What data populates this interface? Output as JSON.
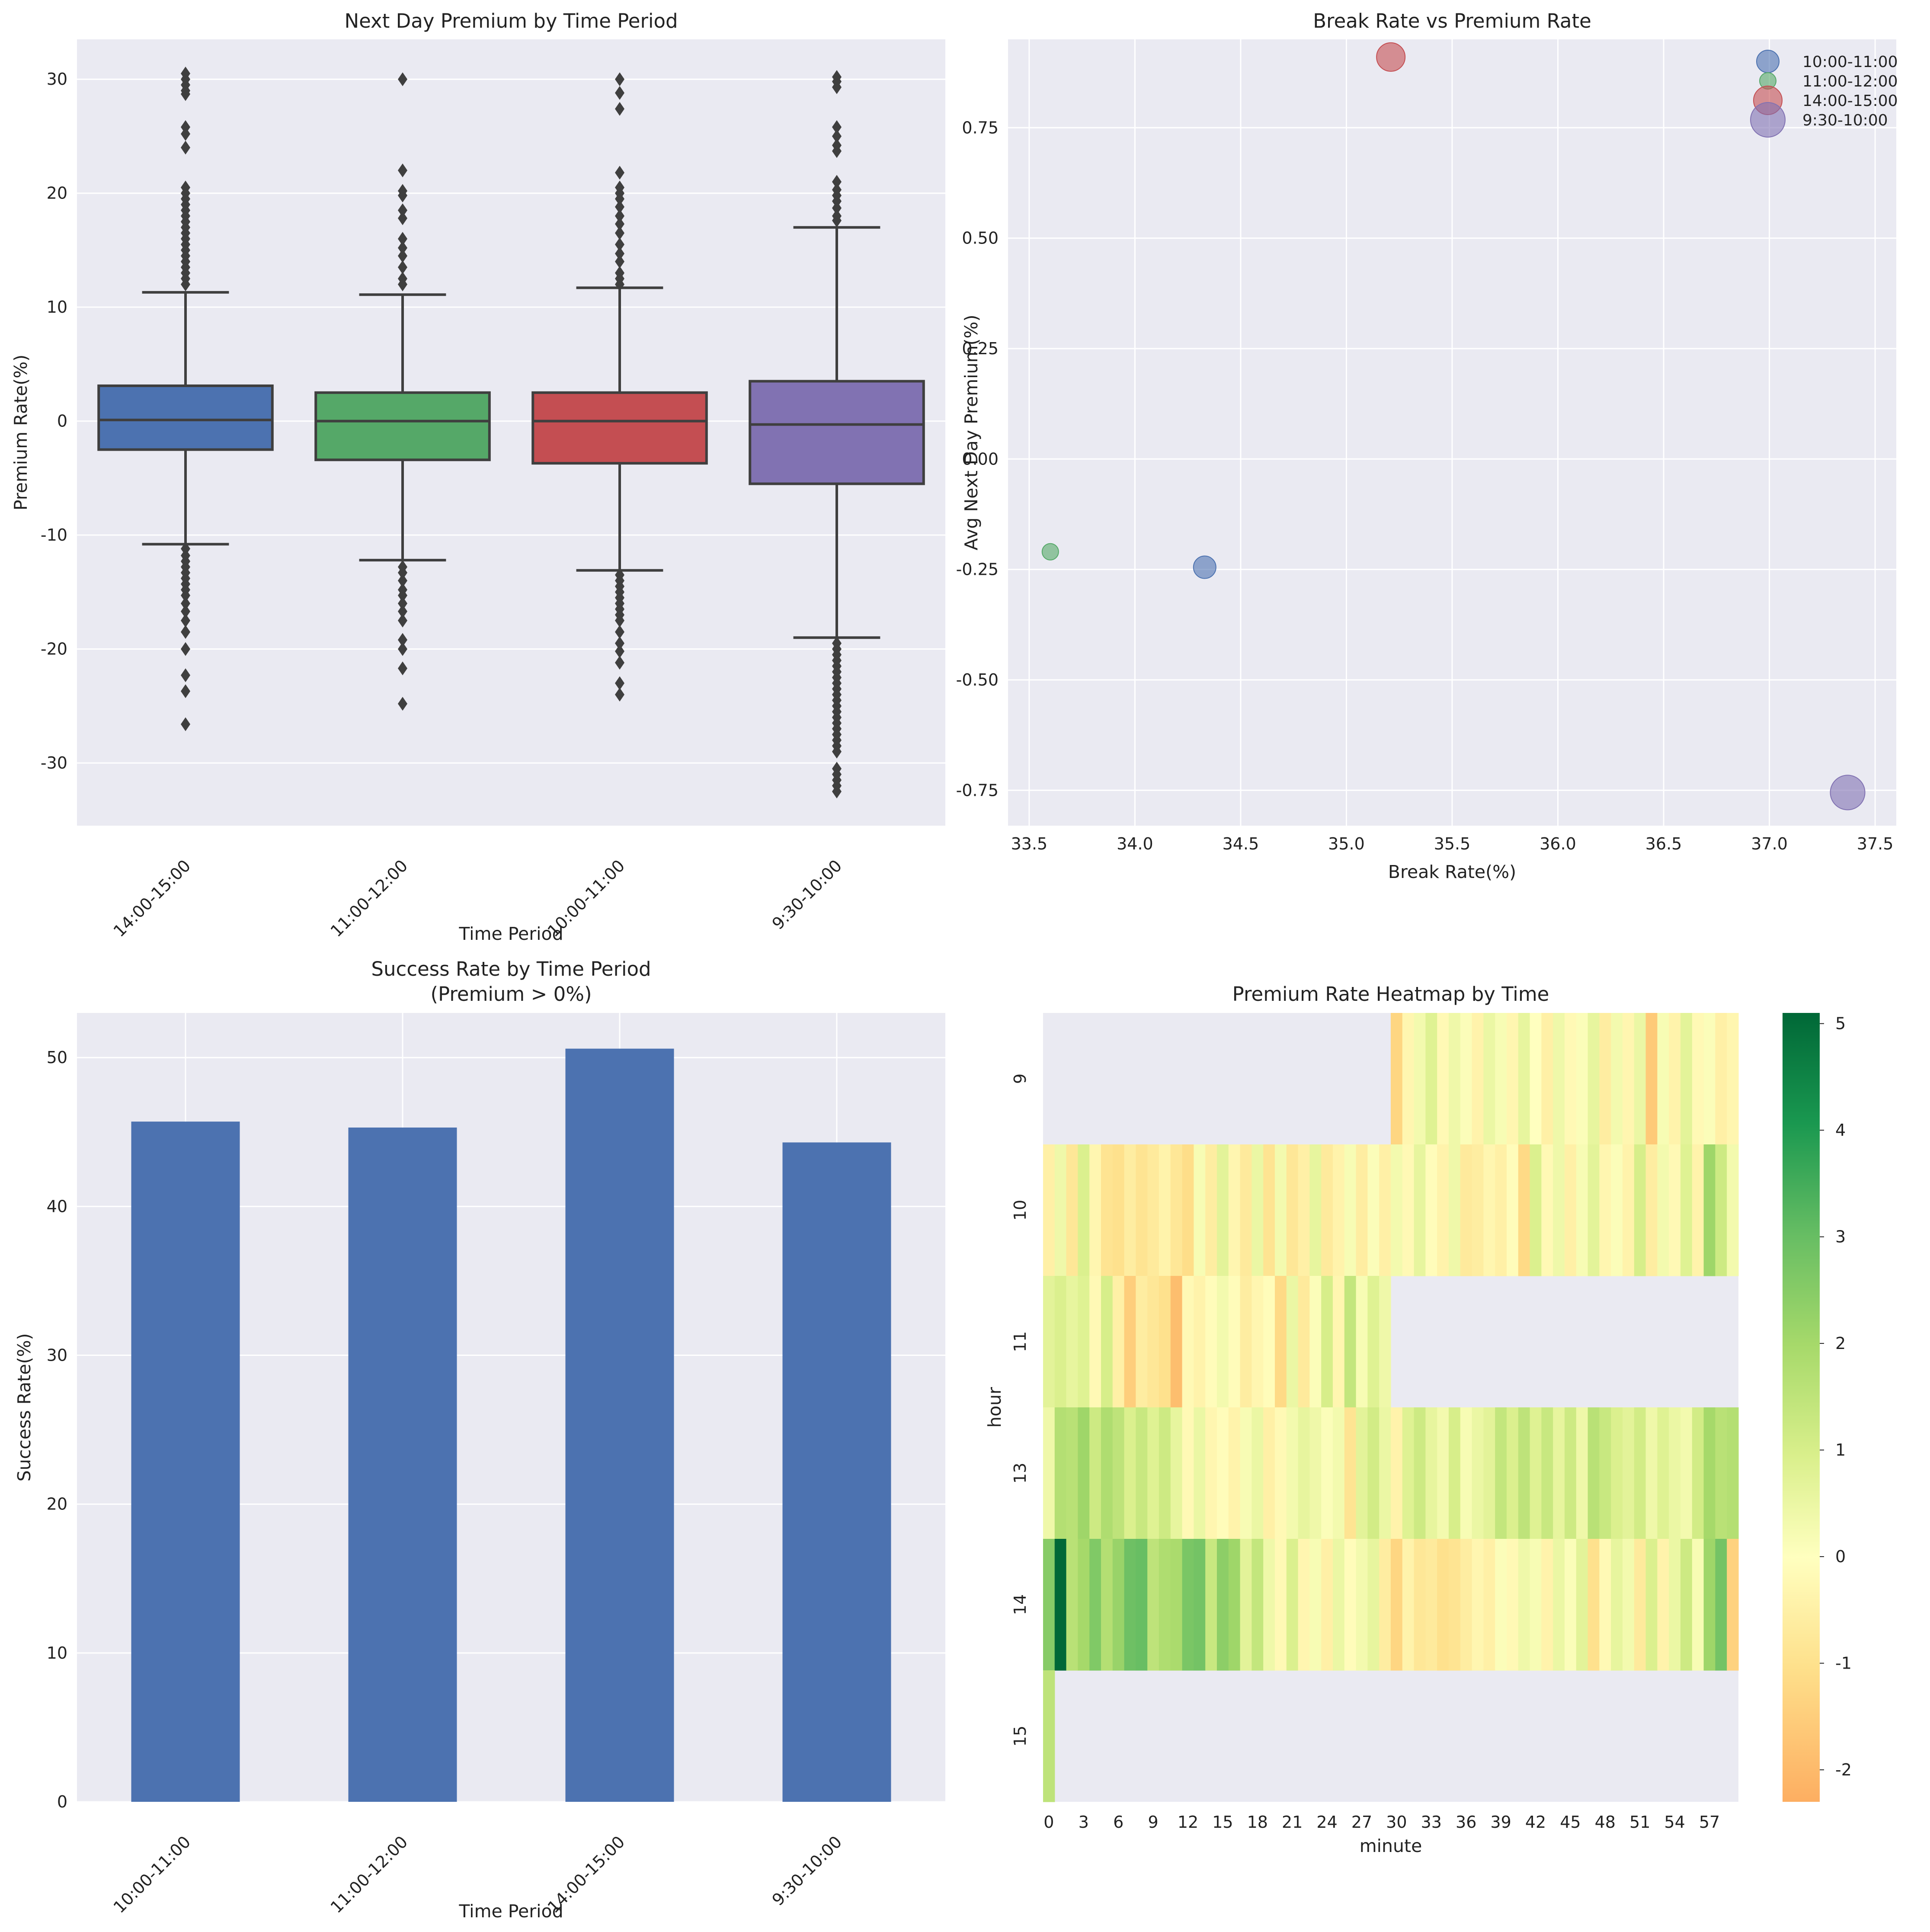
{
  "chart_data": [
    {
      "type": "box",
      "title": "Next Day Premium by Time Period",
      "xlabel": "Time Period",
      "ylabel": "Premium Rate(%)",
      "ylim": [
        -35.5,
        33.5
      ],
      "yticks": [
        30,
        20,
        10,
        0,
        -10,
        -20,
        -30
      ],
      "categories": [
        "14:00-15:00",
        "11:00-12:00",
        "10:00-11:00",
        "9:30-10:00"
      ],
      "colors": [
        "#4c72b0",
        "#55a868",
        "#c44e52",
        "#8172b2"
      ],
      "boxes": [
        {
          "q1": -2.5,
          "median": 0.1,
          "q3": 3.1,
          "whisker_low": -10.8,
          "whisker_high": 11.3,
          "outliers": [
            30.5,
            30.0,
            29.5,
            29.0,
            28.7,
            25.8,
            25.2,
            24.0,
            20.5,
            20.0,
            19.5,
            19.0,
            18.5,
            18.0,
            17.5,
            17.0,
            16.5,
            16.0,
            15.5,
            15.0,
            14.5,
            14.0,
            13.5,
            13.0,
            12.5,
            12.0,
            -11.2,
            -11.8,
            -12.3,
            -12.8,
            -13.3,
            -13.8,
            -14.3,
            -14.8,
            -15.3,
            -16.0,
            -16.7,
            -17.5,
            -18.5,
            -20.0,
            -22.3,
            -23.7,
            -26.6
          ]
        },
        {
          "q1": -3.4,
          "median": 0.0,
          "q3": 2.5,
          "whisker_low": -12.2,
          "whisker_high": 11.1,
          "outliers": [
            30.0,
            22.0,
            20.2,
            19.8,
            18.5,
            17.8,
            16.0,
            15.2,
            14.5,
            13.5,
            12.5,
            12.0,
            -12.8,
            -13.3,
            -14.0,
            -14.8,
            -15.3,
            -16.0,
            -16.7,
            -17.5,
            -19.2,
            -20.0,
            -21.7,
            -24.8
          ]
        },
        {
          "q1": -3.7,
          "median": 0.0,
          "q3": 2.5,
          "whisker_low": -13.1,
          "whisker_high": 11.7,
          "outliers": [
            30.0,
            28.8,
            27.4,
            21.8,
            20.5,
            20.0,
            19.5,
            18.8,
            18.0,
            17.3,
            16.5,
            15.5,
            14.7,
            14.0,
            13.0,
            12.5,
            12.0,
            -13.5,
            -14.0,
            -14.5,
            -15.0,
            -15.5,
            -16.0,
            -16.5,
            -17.0,
            -17.5,
            -18.5,
            -19.5,
            -20.2,
            -21.2,
            -23.0,
            -24.0
          ]
        },
        {
          "q1": -5.5,
          "median": -0.3,
          "q3": 3.5,
          "whisker_low": -19.0,
          "whisker_high": 17.0,
          "outliers": [
            30.2,
            29.8,
            29.3,
            25.8,
            25.0,
            24.2,
            23.7,
            21.0,
            20.3,
            19.8,
            19.3,
            18.7,
            18.0,
            17.6,
            -19.5,
            -20.0,
            -20.5,
            -21.0,
            -21.5,
            -22.0,
            -22.5,
            -23.0,
            -23.5,
            -24.0,
            -24.5,
            -25.0,
            -25.5,
            -26.0,
            -26.5,
            -27.0,
            -27.5,
            -28.0,
            -28.5,
            -29.0,
            -30.5,
            -31.0,
            -31.5,
            -32.0,
            -32.5
          ]
        }
      ]
    },
    {
      "type": "scatter",
      "title": "Break Rate vs Premium Rate",
      "xlabel": "Break Rate(%)",
      "ylabel": "Avg Next Day Premium(%)",
      "xlim": [
        33.4,
        37.6
      ],
      "ylim": [
        -0.83,
        0.95
      ],
      "xticks": [
        33.5,
        34.0,
        34.5,
        35.0,
        35.5,
        36.0,
        36.5,
        37.0,
        37.5
      ],
      "xtick_labels": [
        "33.5",
        "34.0",
        "34.5",
        "35.0",
        "35.5",
        "36.0",
        "36.5",
        "37.0",
        "37.5"
      ],
      "yticks": [
        0.75,
        0.5,
        0.25,
        0.0,
        -0.25,
        -0.5,
        -0.75
      ],
      "ytick_labels": [
        "0.75",
        "0.50",
        "0.25",
        "0.00",
        "-0.25",
        "-0.50",
        "-0.75"
      ],
      "legend_position": "top-right",
      "series": [
        {
          "name": "10:00-11:00",
          "x": 34.33,
          "y": -0.245,
          "color": "#4c72b0",
          "size": 2
        },
        {
          "name": "11:00-12:00",
          "x": 33.6,
          "y": -0.21,
          "color": "#55a868",
          "size": 1
        },
        {
          "name": "14:00-15:00",
          "x": 35.21,
          "y": 0.91,
          "color": "#c44e52",
          "size": 3
        },
        {
          "name": "9:30-10:00",
          "x": 37.37,
          "y": -0.755,
          "color": "#8172b2",
          "size": 4
        }
      ]
    },
    {
      "type": "bar",
      "title": "Success Rate by Time Period",
      "subtitle": "(Premium > 0%)",
      "xlabel": "Time Period",
      "ylabel": "Success Rate(%)",
      "ylim": [
        0,
        53
      ],
      "yticks": [
        0,
        10,
        20,
        30,
        40,
        50
      ],
      "categories": [
        "10:00-11:00",
        "11:00-12:00",
        "14:00-15:00",
        "9:30-10:00"
      ],
      "values": [
        45.7,
        45.3,
        50.6,
        44.3
      ],
      "color": "#4c72b0"
    },
    {
      "type": "heatmap",
      "title": "Premium Rate Heatmap by Time",
      "xlabel": "minute",
      "ylabel": "hour",
      "rows": [
        "9",
        "10",
        "11",
        "13",
        "14",
        "15"
      ],
      "xtick_labels": [
        "0",
        "3",
        "6",
        "9",
        "12",
        "15",
        "18",
        "21",
        "24",
        "27",
        "30",
        "33",
        "36",
        "39",
        "42",
        "45",
        "48",
        "51",
        "54",
        "57"
      ],
      "colorbar_ticks": [
        5,
        4,
        3,
        2,
        1,
        0,
        -1,
        -2
      ],
      "vmin": -2.3,
      "vmax": 5.1,
      "missing_color": "#eaeaf2",
      "values": [
        [
          null,
          null,
          null,
          null,
          null,
          null,
          null,
          null,
          null,
          null,
          null,
          null,
          null,
          null,
          null,
          null,
          null,
          null,
          null,
          null,
          null,
          null,
          null,
          null,
          null,
          null,
          null,
          null,
          null,
          null,
          -1.3,
          -0.3,
          0.3,
          0.8,
          -0.2,
          0.4,
          0.1,
          -0.4,
          0.5,
          0.2,
          -0.3,
          0.6,
          0.0,
          -0.5,
          0.4,
          -0.2,
          0.1,
          0.6,
          -0.6,
          0.3,
          -0.3,
          0.5,
          -1.6,
          0.2,
          -0.4,
          0.7,
          -0.2,
          0.1,
          -0.5,
          -0.3
        ],
        [
          -0.5,
          0.4,
          -0.8,
          0.9,
          -0.3,
          -0.9,
          -1.0,
          -0.6,
          -0.9,
          -0.7,
          -0.4,
          -0.8,
          -1.1,
          0.2,
          -0.6,
          0.7,
          -0.3,
          -0.7,
          0.5,
          -0.9,
          0.3,
          -0.8,
          -0.5,
          0.6,
          -0.7,
          -0.4,
          0.2,
          -0.6,
          0.1,
          -0.5,
          0.3,
          -0.2,
          0.6,
          -0.1,
          -0.4,
          0.4,
          -0.7,
          -0.6,
          -0.3,
          -0.5,
          -0.1,
          -1.2,
          0.9,
          -0.2,
          0.4,
          -0.5,
          0.2,
          0.7,
          -0.3,
          0.1,
          -0.4,
          1.0,
          -0.6,
          0.3,
          -0.2,
          0.8,
          -0.4,
          2.1,
          1.2,
          0.3
        ],
        [
          0.7,
          0.9,
          0.6,
          0.8,
          -0.2,
          1.0,
          -0.5,
          -1.5,
          -0.6,
          -0.8,
          -1.0,
          -1.9,
          -0.2,
          -0.4,
          -0.1,
          0.3,
          -0.1,
          -0.6,
          -0.3,
          -0.1,
          -1.2,
          0.5,
          -0.7,
          0.1,
          1.0,
          -0.3,
          1.4,
          0.2,
          0.8,
          0.4,
          null,
          null,
          null,
          null,
          null,
          null,
          null,
          null,
          null,
          null,
          null,
          null,
          null,
          null,
          null,
          null,
          null,
          null,
          null,
          null,
          null,
          null,
          null,
          null,
          null,
          null,
          null,
          null,
          null,
          null
        ],
        [
          0.4,
          1.7,
          1.6,
          2.1,
          1.2,
          1.8,
          1.5,
          0.9,
          1.3,
          0.8,
          1.2,
          0.6,
          -0.2,
          0.5,
          -0.3,
          -0.1,
          -0.4,
          0.2,
          0.5,
          -0.5,
          -0.2,
          0.3,
          0.6,
          0.4,
          0.1,
          0.3,
          -0.9,
          0.7,
          1.1,
          0.5,
          -0.4,
          0.8,
          1.2,
          0.6,
          0.3,
          1.0,
          0.2,
          0.5,
          0.7,
          1.4,
          0.9,
          1.5,
          0.8,
          1.3,
          0.6,
          1.2,
          0.4,
          1.6,
          1.3,
          0.9,
          0.7,
          1.1,
          0.4,
          0.8,
          0.5,
          0.3,
          1.1,
          2.0,
          1.6,
          1.7
        ],
        [
          2.5,
          5.1,
          1.6,
          2.0,
          2.6,
          1.7,
          2.2,
          2.9,
          3.0,
          1.5,
          1.8,
          1.9,
          2.7,
          2.8,
          1.3,
          2.4,
          2.1,
          0.7,
          1.4,
          0.4,
          -0.2,
          0.9,
          -0.3,
          0.2,
          -0.5,
          0.5,
          -0.1,
          0.3,
          0.6,
          -0.6,
          -1.3,
          -0.4,
          -0.8,
          -0.7,
          -1.0,
          -0.9,
          -0.6,
          -0.3,
          -0.5,
          0.1,
          -0.2,
          0.4,
          0.2,
          -0.4,
          0.5,
          0.1,
          0.7,
          -1.0,
          -0.2,
          0.6,
          0.3,
          -0.7,
          0.9,
          -0.4,
          0.5,
          1.2,
          0.2,
          2.1,
          2.8,
          -1.4
        ],
        [
          1.5,
          null,
          null,
          null,
          null,
          null,
          null,
          null,
          null,
          null,
          null,
          null,
          null,
          null,
          null,
          null,
          null,
          null,
          null,
          null,
          null,
          null,
          null,
          null,
          null,
          null,
          null,
          null,
          null,
          null,
          null,
          null,
          null,
          null,
          null,
          null,
          null,
          null,
          null,
          null,
          null,
          null,
          null,
          null,
          null,
          null,
          null,
          null,
          null,
          null,
          null,
          null,
          null,
          null,
          null,
          null,
          null,
          null,
          null,
          null
        ]
      ]
    }
  ]
}
